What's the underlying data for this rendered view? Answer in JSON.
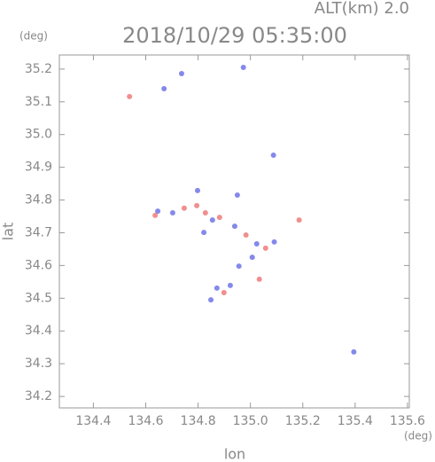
{
  "chart_data": {
    "type": "scatter",
    "title": "2018/10/29 05:35:00",
    "subtitle": "ALT(km) 2.0",
    "x_label": "lon",
    "y_label": "lat",
    "x_unit": "(deg)",
    "y_unit": "(deg)",
    "xlim": [
      134.27,
      135.607
    ],
    "ylim": [
      34.165,
      35.243
    ],
    "xticks": [
      134.4,
      134.6,
      134.8,
      {
        "value": 135,
        "label": "135.0"
      },
      135.2,
      135.4,
      135.6
    ],
    "yticks": [
      34.2,
      34.3,
      34.4,
      34.5,
      34.6,
      34.7,
      34.8,
      34.9,
      {
        "value": 35,
        "label": "35.0"
      },
      35.1,
      35.2
    ],
    "series": [
      {
        "color": "#6f74e8",
        "x": [
          134.737,
          134.973,
          134.67,
          135.088,
          134.95,
          134.798,
          134.703,
          134.855,
          134.94,
          135.024,
          135.091,
          134.956,
          134.872,
          134.849,
          134.923,
          135.395,
          134.646,
          134.822,
          135.007
        ],
        "y": [
          35.186,
          35.205,
          35.14,
          34.937,
          34.815,
          34.829,
          34.761,
          34.739,
          34.72,
          34.666,
          34.672,
          34.598,
          34.531,
          34.495,
          34.539,
          34.336,
          34.766,
          34.701,
          34.625
        ]
      },
      {
        "color": "#ee7a7a",
        "x": [
          134.538,
          135.186,
          135.034,
          134.636,
          134.795,
          134.882,
          134.983,
          134.899,
          134.828,
          135.058,
          134.747
        ],
        "y": [
          35.116,
          34.739,
          34.558,
          34.753,
          34.783,
          34.747,
          34.693,
          34.517,
          34.761,
          34.653,
          34.775
        ]
      }
    ]
  }
}
